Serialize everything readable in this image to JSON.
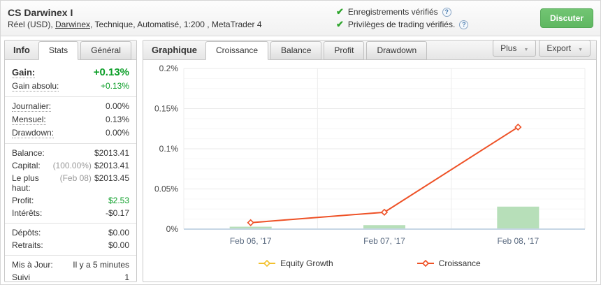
{
  "header": {
    "title": "CS Darwinex I",
    "subtitle": {
      "prefix": "Réel (USD), ",
      "link": "Darwinex",
      "suffix": ", Technique, Automatisé, 1:200 , MetaTrader 4"
    },
    "verifications": [
      "Enregistrements vérifiés",
      "Privilèges de trading vérifiés."
    ],
    "discuss_label": "Discuter"
  },
  "sidebar": {
    "title": "Info",
    "tabs": [
      {
        "label": "Stats",
        "active": true
      },
      {
        "label": "Général",
        "active": false
      }
    ],
    "groups": [
      {
        "rows": [
          {
            "label": "Gain:",
            "value": "+0.13%",
            "color": "green",
            "big": true,
            "dotted": true
          },
          {
            "label": "Gain absolu:",
            "value": "+0.13%",
            "color": "green",
            "dotted": true
          }
        ]
      },
      {
        "rows": [
          {
            "label": "Journalier:",
            "value": "0.00%",
            "dotted": true
          },
          {
            "label": "Mensuel:",
            "value": "0.13%",
            "dotted": true
          },
          {
            "label": "Drawdown:",
            "value": "0.00%",
            "dotted": true
          }
        ]
      },
      {
        "rows": [
          {
            "label": "Balance:",
            "value": "$2013.41"
          },
          {
            "label": "Capital:",
            "muted": "(100.00%)",
            "value": "$2013.41"
          },
          {
            "label": "Le plus haut:",
            "muted": "(Feb 08)",
            "value": "$2013.45"
          },
          {
            "label": "Profit:",
            "value": "$2.53",
            "color": "green"
          },
          {
            "label": "Intérêts:",
            "value": "-$0.17"
          }
        ]
      },
      {
        "rows": [
          {
            "label": "Dépôts:",
            "value": "$0.00"
          },
          {
            "label": "Retraits:",
            "value": "$0.00"
          }
        ]
      },
      {
        "rows": [
          {
            "label": "Mis à Jour:",
            "value": "Il y a 5 minutes"
          },
          {
            "label": "Suivi",
            "value": "1"
          }
        ]
      }
    ]
  },
  "chart_panel": {
    "title": "Graphique",
    "tabs": [
      {
        "label": "Croissance",
        "active": true
      },
      {
        "label": "Balance",
        "active": false
      },
      {
        "label": "Profit",
        "active": false
      },
      {
        "label": "Drawdown",
        "active": false
      }
    ],
    "plus_label": "Plus",
    "export_label": "Export"
  },
  "chart_data": {
    "type": "line+bar",
    "categories": [
      "Feb 06, '17",
      "Feb 07, '17",
      "Feb 08, '17"
    ],
    "series": [
      {
        "name": "bars",
        "type": "bar",
        "color": "#b7dfb9",
        "values": [
          0.003,
          0.005,
          0.028
        ]
      },
      {
        "name": "Equity Growth",
        "type": "line",
        "color": "#f2c12e",
        "values": []
      },
      {
        "name": "Croissance",
        "type": "line",
        "color": "#ee5126",
        "values": [
          0.008,
          0.021,
          0.127
        ]
      }
    ],
    "ylim": [
      0,
      0.2
    ],
    "yticks": [
      {
        "value": 0,
        "label": "0%"
      },
      {
        "value": 0.05,
        "label": "0.05%"
      },
      {
        "value": 0.1,
        "label": "0.1%"
      },
      {
        "value": 0.15,
        "label": "0.15%"
      },
      {
        "value": 0.2,
        "label": "0.2%"
      }
    ],
    "minor_step": 0.0125,
    "grid": true,
    "legend_position": "bottom",
    "legend": [
      {
        "label": "Equity Growth",
        "color": "#f2c12e"
      },
      {
        "label": "Croissance",
        "color": "#ee5126"
      }
    ]
  },
  "colors": {
    "green": "#0b9e27",
    "bar_green": "#b7dfb9",
    "line_orange": "#ee5126",
    "equity_yellow": "#f2c12e",
    "axis_blue": "#c6d6e5",
    "grid_major": "#e9e9e9",
    "grid_minor": "#f6f6f6",
    "button_green": "#5fb761"
  }
}
